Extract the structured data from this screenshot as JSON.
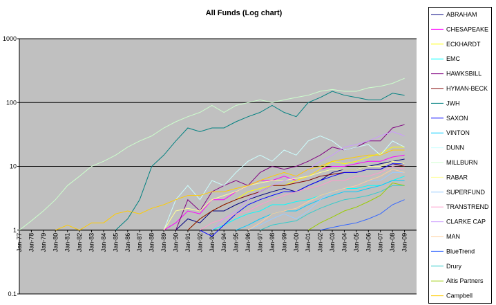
{
  "chart_data": {
    "type": "line",
    "title": "All Funds (Log chart)",
    "log_scale": true,
    "ylim": [
      0.1,
      1000
    ],
    "yticks": [
      0.1,
      1,
      10,
      100,
      1000
    ],
    "grid": true,
    "legend": "right",
    "categories": [
      "Jan-77",
      "Jan-78",
      "Jan-79",
      "Jan-80",
      "Jan-81",
      "Jan-82",
      "Jan-83",
      "Jan-84",
      "Jan-85",
      "Jan-86",
      "Jan-87",
      "Jan-88",
      "Jan-89",
      "Jan-90",
      "Jan-91",
      "Jan-92",
      "Jan-93",
      "Jan-94",
      "Jan-95",
      "Jan-96",
      "Jan-97",
      "Jan-98",
      "Jan-99",
      "Jan-00",
      "Jan-01",
      "Jan-02",
      "Jan-03",
      "Jan-04",
      "Jan-05",
      "Jan-06",
      "Jan-07",
      "Jan-08",
      "Jan-09"
    ],
    "series": [
      {
        "name": "ABRAHAM",
        "color": "#000080",
        "values": [
          null,
          null,
          null,
          null,
          null,
          null,
          null,
          null,
          null,
          null,
          null,
          null,
          null,
          1,
          1.5,
          1.3,
          2,
          2,
          2.5,
          3,
          3.5,
          4,
          4.5,
          4,
          5,
          6,
          8,
          9,
          9,
          10,
          11,
          12,
          13
        ]
      },
      {
        "name": "CHESAPEAKE",
        "color": "#ff00ff",
        "values": [
          null,
          null,
          null,
          null,
          null,
          null,
          null,
          null,
          null,
          null,
          null,
          null,
          1,
          1.3,
          2,
          1.8,
          3,
          3,
          4,
          5,
          6,
          6,
          7,
          6,
          7,
          9,
          10,
          10,
          11,
          12,
          12,
          14,
          15
        ]
      },
      {
        "name": "ECKHARDT",
        "color": "#ffff00",
        "values": [
          null,
          null,
          null,
          null,
          null,
          null,
          null,
          null,
          null,
          null,
          null,
          null,
          null,
          null,
          1,
          1.5,
          2,
          2.5,
          3,
          4,
          4.5,
          5,
          5,
          6,
          7,
          9,
          12,
          11,
          12,
          14,
          16,
          20,
          20
        ]
      },
      {
        "name": "EMC",
        "color": "#00ffff",
        "values": [
          null,
          null,
          null,
          null,
          null,
          null,
          null,
          null,
          null,
          null,
          null,
          null,
          null,
          null,
          null,
          null,
          1,
          1.2,
          1.5,
          1.8,
          2,
          2.5,
          2.5,
          2.8,
          3,
          3.5,
          4,
          4.5,
          4.5,
          5,
          5,
          6,
          7
        ]
      },
      {
        "name": "HAWKSBILL",
        "color": "#800080",
        "values": [
          null,
          null,
          null,
          null,
          null,
          null,
          null,
          null,
          null,
          null,
          null,
          null,
          null,
          1,
          3,
          2,
          4,
          5,
          6,
          5,
          8,
          10,
          9,
          10,
          12,
          15,
          20,
          18,
          20,
          25,
          25,
          40,
          45
        ]
      },
      {
        "name": "HYMAN-BECK",
        "color": "#800000",
        "values": [
          null,
          null,
          null,
          null,
          null,
          null,
          null,
          null,
          null,
          null,
          null,
          null,
          null,
          null,
          1,
          1.5,
          2,
          2.5,
          3,
          3.5,
          4,
          5,
          5,
          5.5,
          6,
          7,
          7.5,
          8,
          8,
          9,
          9,
          11,
          10
        ]
      },
      {
        "name": "JWH",
        "color": "#008080",
        "values": [
          null,
          null,
          null,
          null,
          null,
          null,
          null,
          null,
          1,
          1.5,
          3,
          10,
          15,
          25,
          40,
          35,
          40,
          40,
          50,
          60,
          70,
          90,
          70,
          60,
          100,
          120,
          150,
          130,
          120,
          110,
          110,
          140,
          130
        ]
      },
      {
        "name": "SAXON",
        "color": "#0000ff",
        "values": [
          null,
          null,
          null,
          null,
          null,
          null,
          null,
          null,
          null,
          null,
          null,
          null,
          null,
          null,
          null,
          1,
          0.8,
          1.2,
          1.8,
          2.5,
          3,
          3.5,
          4,
          4,
          5,
          6,
          7,
          8,
          8,
          9,
          9,
          11,
          11
        ]
      },
      {
        "name": "VINTON",
        "color": "#00ccff",
        "values": [
          null,
          null,
          null,
          null,
          null,
          null,
          null,
          null,
          null,
          null,
          null,
          null,
          null,
          null,
          null,
          null,
          null,
          null,
          1,
          1.2,
          1.5,
          1.8,
          2,
          2,
          2.5,
          3,
          3.5,
          4,
          4,
          4.5,
          5,
          6,
          6
        ]
      },
      {
        "name": "DUNN",
        "color": "#ccffff",
        "values": [
          null,
          null,
          null,
          null,
          null,
          null,
          null,
          null,
          null,
          null,
          null,
          null,
          1,
          3,
          5,
          3,
          6,
          5,
          8,
          12,
          15,
          12,
          18,
          15,
          25,
          30,
          25,
          18,
          20,
          22,
          15,
          25,
          20
        ]
      },
      {
        "name": "MILLBURN",
        "color": "#ccffcc",
        "values": [
          1,
          1.4,
          2,
          3,
          5,
          7,
          10,
          12,
          15,
          20,
          25,
          30,
          40,
          50,
          60,
          70,
          90,
          70,
          90,
          100,
          110,
          100,
          110,
          120,
          130,
          150,
          160,
          150,
          150,
          170,
          180,
          200,
          240
        ]
      },
      {
        "name": "RABAR",
        "color": "#ffff99",
        "values": [
          null,
          null,
          null,
          null,
          null,
          null,
          null,
          null,
          null,
          null,
          null,
          null,
          1,
          2,
          2.2,
          2,
          3,
          3.5,
          4,
          5,
          5.5,
          6,
          6,
          6.5,
          7,
          8,
          9,
          9,
          9,
          10,
          10,
          12,
          11
        ]
      },
      {
        "name": "SUPERFUND",
        "color": "#99ccff",
        "values": [
          null,
          null,
          null,
          null,
          null,
          null,
          null,
          null,
          null,
          null,
          null,
          null,
          null,
          null,
          null,
          null,
          null,
          null,
          null,
          1,
          1.2,
          1.5,
          1.8,
          1.5,
          2,
          3,
          4,
          4.5,
          5,
          6,
          6,
          8,
          8
        ]
      },
      {
        "name": "TRANSTREND",
        "color": "#ff99cc",
        "values": [
          null,
          null,
          null,
          null,
          null,
          null,
          null,
          null,
          null,
          null,
          null,
          null,
          null,
          null,
          null,
          1,
          1.3,
          1.5,
          1.8,
          2,
          2.5,
          3,
          3.5,
          4,
          4.5,
          5,
          6,
          6,
          7,
          7,
          8,
          10,
          9
        ]
      },
      {
        "name": "CLARKE CAP",
        "color": "#cc99ff",
        "values": [
          null,
          null,
          null,
          null,
          null,
          null,
          null,
          null,
          null,
          null,
          null,
          null,
          null,
          null,
          null,
          null,
          1,
          1.5,
          2,
          3,
          4,
          5,
          6,
          7,
          9,
          12,
          15,
          20,
          22,
          25,
          30,
          35,
          30
        ]
      },
      {
        "name": "MAN",
        "color": "#ffcc99",
        "values": [
          null,
          null,
          null,
          null,
          null,
          null,
          null,
          null,
          null,
          null,
          null,
          null,
          null,
          null,
          null,
          null,
          null,
          null,
          null,
          1,
          1.3,
          1.8,
          2,
          2.2,
          2.8,
          3.5,
          4,
          4.5,
          5,
          6,
          7,
          9,
          8
        ]
      },
      {
        "name": "BlueTrend",
        "color": "#3366ff",
        "values": [
          null,
          null,
          null,
          null,
          null,
          null,
          null,
          null,
          null,
          null,
          null,
          null,
          null,
          null,
          null,
          null,
          null,
          null,
          null,
          null,
          null,
          null,
          null,
          null,
          null,
          1,
          1.1,
          1.2,
          1.3,
          1.5,
          1.8,
          2.5,
          3
        ]
      },
      {
        "name": "Drury",
        "color": "#33cccc",
        "values": [
          null,
          null,
          null,
          null,
          null,
          null,
          null,
          null,
          null,
          null,
          null,
          null,
          null,
          null,
          null,
          null,
          null,
          null,
          null,
          null,
          1,
          1.2,
          1.3,
          1.4,
          1.8,
          2.2,
          2.6,
          3,
          3.2,
          3.5,
          4,
          5,
          5
        ]
      },
      {
        "name": "Altis Partners",
        "color": "#99cc00",
        "values": [
          null,
          null,
          null,
          null,
          null,
          null,
          null,
          null,
          null,
          null,
          null,
          null,
          null,
          null,
          null,
          null,
          null,
          null,
          null,
          null,
          null,
          null,
          null,
          null,
          1,
          1.3,
          1.6,
          2,
          2.3,
          2.8,
          3.5,
          5.5,
          5
        ]
      },
      {
        "name": "Campbell",
        "color": "#ffcc00",
        "values": [
          null,
          null,
          null,
          1,
          1.2,
          1,
          1.3,
          1.3,
          1.8,
          2,
          1.8,
          2.2,
          2.5,
          3,
          3.5,
          3.5,
          4,
          4,
          4.5,
          5,
          6,
          7,
          8,
          7,
          9,
          10,
          12,
          13,
          14,
          15,
          15,
          18,
          18
        ]
      }
    ]
  }
}
